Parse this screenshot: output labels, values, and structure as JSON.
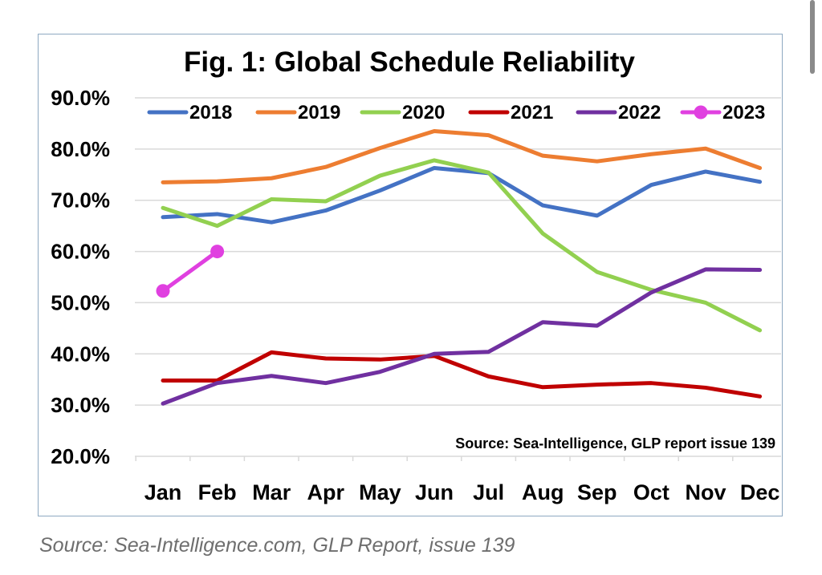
{
  "caption": "Source: Sea-Intelligence.com, GLP Report, issue 139",
  "chart_data": {
    "type": "line",
    "title": "Fig. 1: Global Schedule Reliability",
    "annotation": "Source: Sea-Intelligence, GLP report issue 139",
    "categories": [
      "Jan",
      "Feb",
      "Mar",
      "Apr",
      "May",
      "Jun",
      "Jul",
      "Aug",
      "Sep",
      "Oct",
      "Nov",
      "Dec"
    ],
    "ylim": [
      20,
      90
    ],
    "yticks": [
      20,
      30,
      40,
      50,
      60,
      70,
      80,
      90
    ],
    "ytick_labels": [
      "20.0%",
      "30.0%",
      "40.0%",
      "50.0%",
      "60.0%",
      "70.0%",
      "80.0%",
      "90.0%"
    ],
    "grid": "horizontal",
    "legend_position": "top",
    "series": [
      {
        "name": "2018",
        "color": "#4472c4",
        "markers": false,
        "values": [
          66.7,
          67.3,
          65.7,
          68.0,
          71.9,
          76.3,
          75.3,
          69.0,
          67.0,
          73.0,
          75.6,
          73.6
        ]
      },
      {
        "name": "2019",
        "color": "#ed7d31",
        "markers": false,
        "values": [
          73.5,
          73.7,
          74.3,
          76.5,
          80.2,
          83.5,
          82.7,
          78.7,
          77.6,
          79.0,
          80.1,
          76.3
        ]
      },
      {
        "name": "2020",
        "color": "#92d050",
        "markers": false,
        "values": [
          68.5,
          65.0,
          70.2,
          69.8,
          74.8,
          77.8,
          75.4,
          63.5,
          56.0,
          52.5,
          50.0,
          44.6
        ]
      },
      {
        "name": "2021",
        "color": "#c00000",
        "markers": false,
        "values": [
          34.8,
          34.8,
          40.3,
          39.1,
          38.9,
          39.6,
          35.6,
          33.5,
          34.0,
          34.3,
          33.4,
          31.7
        ]
      },
      {
        "name": "2022",
        "color": "#7030a0",
        "markers": false,
        "values": [
          30.3,
          34.3,
          35.7,
          34.3,
          36.5,
          40.0,
          40.4,
          46.2,
          45.5,
          52.0,
          56.5,
          56.4
        ]
      },
      {
        "name": "2023",
        "color": "#e040e0",
        "markers": true,
        "values": [
          52.3,
          60.0,
          null,
          null,
          null,
          null,
          null,
          null,
          null,
          null,
          null,
          null
        ]
      }
    ]
  }
}
